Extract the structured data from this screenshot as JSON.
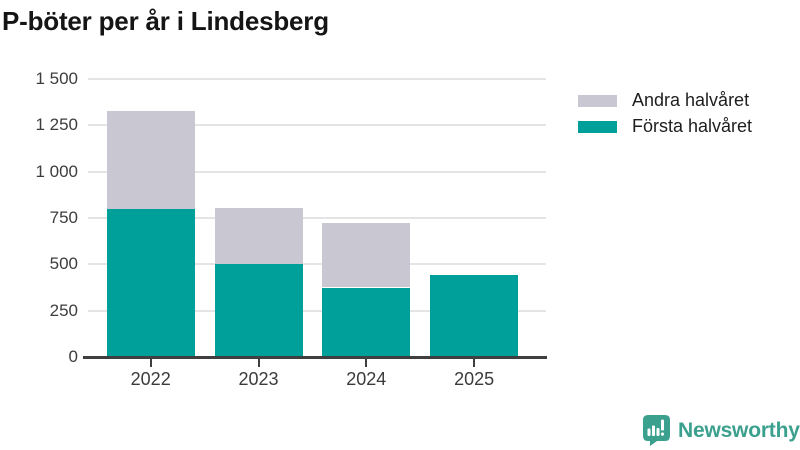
{
  "title": "P-böter per år i Lindesberg",
  "chart_data": {
    "type": "bar",
    "stacked": true,
    "title": "P-böter per år i Lindesberg",
    "categories": [
      "2022",
      "2023",
      "2024",
      "2025"
    ],
    "series": [
      {
        "name": "Första halvåret",
        "color": "#00a09a",
        "values": [
          800,
          500,
          375,
          440
        ]
      },
      {
        "name": "Andra halvåret",
        "color": "#c9c7d2",
        "values": [
          530,
          305,
          350,
          0
        ]
      }
    ],
    "xlabel": "",
    "ylabel": "",
    "ylim": [
      0,
      1500
    ],
    "yticks": [
      0,
      250,
      500,
      750,
      1000,
      1250,
      1500
    ],
    "ytick_labels": [
      "0",
      "250",
      "500",
      "750",
      "1 000",
      "1 250",
      "1 500"
    ],
    "grid": true,
    "legend_position": "top-right",
    "legend": [
      {
        "label": "Andra halvåret",
        "color": "#c9c7d2"
      },
      {
        "label": "Första halvåret",
        "color": "#00a09a"
      }
    ]
  },
  "style": {
    "grid_color": "#e4e4e6",
    "axis_color": "#3f3f3f",
    "tick_label_color": "#3b3b3b",
    "title_color": "#151515"
  },
  "footer": {
    "brand": "Newsworthy",
    "brand_color": "#3ba08e",
    "icon": "newsworthy-logo"
  }
}
